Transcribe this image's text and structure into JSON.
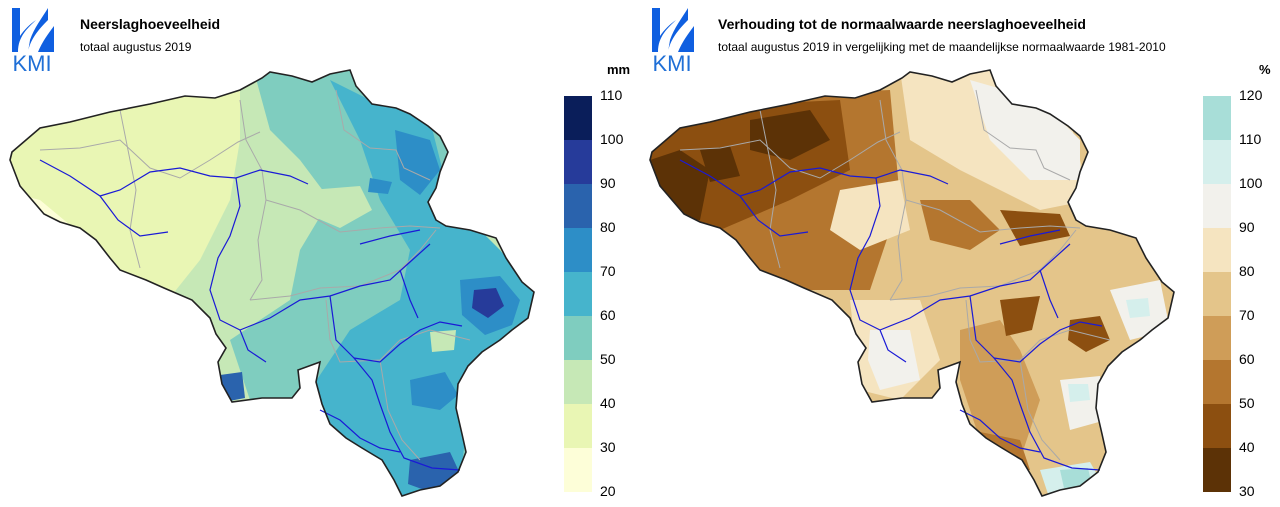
{
  "logo": {
    "text": "KMI",
    "icon": "kmi-logo-icon",
    "color": "#0f5fe0"
  },
  "left_map": {
    "title": "Neerslaghoeveelheid",
    "subtitle": "totaal augustus 2019",
    "unit": "mm",
    "legend": {
      "ticks": [
        "110",
        "100",
        "90",
        "80",
        "70",
        "60",
        "50",
        "40",
        "30",
        "20"
      ],
      "colors": [
        "#0a1e5a",
        "#263b9a",
        "#2a63ad",
        "#2d8ec7",
        "#46b4cc",
        "#7fcdbf",
        "#c6e8b6",
        "#e9f6b4",
        "#fdfed8"
      ]
    }
  },
  "right_map": {
    "title": "Verhouding tot de normaalwaarde neerslaghoeveelheid",
    "subtitle": "totaal augustus 2019 in vergelijking met de maandelijkse normaalwaarde 1981-2010",
    "unit": "%",
    "legend": {
      "ticks": [
        "120",
        "110",
        "100",
        "90",
        "80",
        "70",
        "60",
        "50",
        "40",
        "30"
      ],
      "colors": [
        "#a8ded8",
        "#d5efec",
        "#f2f1ec",
        "#f5e4c0",
        "#e4c58a",
        "#cf9d58",
        "#b4762f",
        "#8c4f10",
        "#5c3206"
      ]
    }
  }
}
